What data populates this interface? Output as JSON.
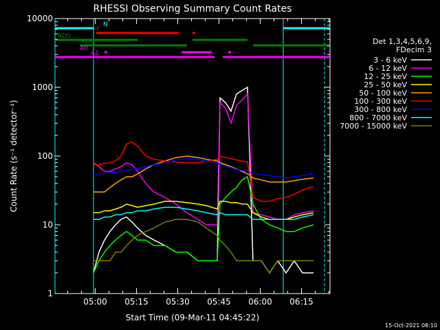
{
  "chart_data": {
    "type": "line",
    "title": "RHESSI Observing Summary Count Rates",
    "xlabel": "Start Time (09-Mar-11 04:45:22)",
    "ylabel": "Count Rate (s⁻¹ detector⁻¹)",
    "yscale": "log",
    "ylim": [
      1,
      10000
    ],
    "xlim_minutes": [
      0,
      100
    ],
    "x_ticks": [
      "05:00",
      "05:15",
      "05:30",
      "05:45",
      "06:00",
      "06:15"
    ],
    "y_ticks": [
      "1",
      "10",
      "100",
      "1000",
      "10000"
    ],
    "legend_header": [
      "Det 1,3,4,5,6,9,",
      "FDecim 3"
    ],
    "legend_placement": "right",
    "footer_stamp": "15-Oct-2021 08:10",
    "flag_labels": [
      "N",
      "F",
      "RD0",
      "RD6",
      "A0",
      "A1"
    ],
    "series": [
      {
        "name": "3 - 6 keV",
        "color": "#ffffff",
        "t": [
          14,
          16,
          18,
          20,
          22,
          24,
          26,
          28,
          30,
          33,
          36,
          40,
          44,
          48,
          52,
          55,
          59,
          60,
          62,
          64,
          66,
          68,
          70,
          72,
          75,
          78,
          81,
          84,
          87,
          90,
          94
        ],
        "v": [
          2,
          4,
          6,
          8,
          10,
          12,
          13,
          11,
          9,
          7,
          6,
          5,
          4,
          4,
          3,
          3,
          3,
          700,
          600,
          450,
          800,
          900,
          1000,
          3,
          3,
          2,
          3,
          2,
          3,
          2,
          2
        ]
      },
      {
        "name": "6 - 12 keV",
        "color": "#ff00ff",
        "t": [
          14,
          16,
          18,
          20,
          22,
          24,
          26,
          28,
          30,
          33,
          36,
          40,
          44,
          48,
          52,
          55,
          59,
          60,
          62,
          64,
          66,
          68,
          70,
          72,
          75,
          78,
          81,
          84,
          87,
          90,
          94
        ],
        "v": [
          80,
          70,
          60,
          60,
          65,
          70,
          80,
          75,
          60,
          40,
          30,
          25,
          20,
          15,
          12,
          10,
          10,
          600,
          500,
          300,
          550,
          650,
          800,
          15,
          14,
          13,
          12,
          12,
          14,
          15,
          16
        ]
      },
      {
        "name": "12 - 25 keV",
        "color": "#00ff00",
        "t": [
          14,
          16,
          18,
          20,
          22,
          24,
          26,
          28,
          30,
          33,
          36,
          40,
          44,
          48,
          52,
          55,
          59,
          60,
          62,
          64,
          66,
          68,
          70,
          72,
          75,
          78,
          81,
          84,
          87,
          90,
          94
        ],
        "v": [
          2,
          3,
          4,
          5,
          6,
          7,
          8,
          7,
          6,
          6,
          5,
          5,
          4,
          4,
          3,
          3,
          3,
          20,
          25,
          30,
          35,
          45,
          50,
          20,
          12,
          10,
          9,
          8,
          8,
          9,
          10
        ]
      },
      {
        "name": "25 - 50 keV",
        "color": "#ffff00",
        "t": [
          14,
          16,
          18,
          20,
          22,
          24,
          26,
          28,
          30,
          33,
          36,
          40,
          44,
          48,
          52,
          55,
          59,
          60,
          62,
          64,
          66,
          68,
          70,
          72,
          75,
          78,
          81,
          84,
          87,
          90,
          94
        ],
        "v": [
          15,
          15,
          16,
          16,
          17,
          18,
          20,
          19,
          18,
          19,
          20,
          22,
          22,
          21,
          20,
          19,
          17,
          22,
          22,
          21,
          21,
          20,
          20,
          15,
          13,
          12,
          12,
          12,
          13,
          14,
          15
        ]
      },
      {
        "name": "50 - 100 keV",
        "color": "#ffa500",
        "t": [
          14,
          16,
          18,
          20,
          22,
          24,
          26,
          28,
          30,
          33,
          36,
          40,
          44,
          48,
          52,
          55,
          59,
          60,
          62,
          64,
          66,
          68,
          70,
          72,
          75,
          78,
          81,
          84,
          87,
          90,
          94
        ],
        "v": [
          30,
          30,
          30,
          35,
          40,
          45,
          50,
          50,
          55,
          65,
          75,
          85,
          95,
          100,
          95,
          90,
          85,
          80,
          75,
          70,
          65,
          60,
          55,
          48,
          45,
          42,
          42,
          42,
          44,
          46,
          48
        ]
      },
      {
        "name": "100 - 300 keV",
        "color": "#ff0000",
        "t": [
          14,
          16,
          18,
          20,
          22,
          24,
          26,
          28,
          30,
          33,
          36,
          40,
          44,
          48,
          52,
          55,
          59,
          60,
          62,
          64,
          66,
          68,
          70,
          72,
          75,
          78,
          81,
          84,
          87,
          90,
          94
        ],
        "v": [
          75,
          75,
          78,
          80,
          85,
          100,
          150,
          160,
          140,
          100,
          90,
          85,
          82,
          80,
          80,
          85,
          90,
          100,
          95,
          92,
          88,
          85,
          82,
          25,
          22,
          22,
          24,
          25,
          28,
          32,
          36
        ]
      },
      {
        "name": "300 - 800 keV",
        "color": "#0000ff",
        "t": [
          14,
          16,
          18,
          20,
          22,
          24,
          26,
          28,
          30,
          33,
          36,
          40,
          44,
          48,
          52,
          55,
          59,
          60,
          62,
          64,
          66,
          68,
          70,
          72,
          75,
          78,
          81,
          84,
          87,
          90,
          94
        ],
        "v": [
          55,
          55,
          56,
          57,
          58,
          60,
          62,
          64,
          66,
          70,
          75,
          80,
          88,
          92,
          90,
          85,
          80,
          75,
          72,
          68,
          64,
          62,
          60,
          56,
          54,
          52,
          50,
          48,
          50,
          52,
          55
        ]
      },
      {
        "name": "800 - 7000 keV",
        "color": "#00ffff",
        "t": [
          14,
          16,
          18,
          20,
          22,
          24,
          26,
          28,
          30,
          33,
          36,
          40,
          44,
          48,
          52,
          55,
          59,
          60,
          62,
          64,
          66,
          68,
          70,
          72,
          75,
          78,
          81,
          84,
          87,
          90,
          94
        ],
        "v": [
          12,
          12,
          13,
          13,
          14,
          14,
          15,
          15,
          16,
          16,
          17,
          18,
          18,
          17,
          16,
          15,
          14,
          15,
          14,
          14,
          14,
          14,
          14,
          12,
          12,
          12,
          12,
          12,
          12,
          13,
          14
        ]
      },
      {
        "name": "7000 - 15000 keV",
        "color": "#808000",
        "t": [
          14,
          16,
          18,
          20,
          22,
          24,
          26,
          28,
          30,
          33,
          36,
          40,
          44,
          48,
          52,
          55,
          59,
          60,
          62,
          64,
          66,
          68,
          70,
          72,
          75,
          78,
          81,
          84,
          87,
          90,
          94
        ],
        "v": [
          3,
          3,
          3,
          3,
          4,
          4,
          5,
          6,
          7,
          8,
          9,
          11,
          12,
          12,
          11,
          9,
          7,
          6,
          5,
          4,
          3,
          3,
          3,
          3,
          3,
          2,
          3,
          3,
          3,
          3,
          3
        ]
      }
    ],
    "flags": [
      {
        "label": "N",
        "color": "#00ffff",
        "segments": [
          [
            0,
            14
          ],
          [
            83,
            100
          ]
        ]
      },
      {
        "label": "F",
        "color": "#ff0000",
        "segments": [
          [
            15,
            45
          ],
          [
            50,
            51
          ]
        ]
      },
      {
        "label": "RD0",
        "color": "#008000",
        "segments": [
          [
            0,
            30
          ],
          [
            50,
            70
          ]
        ]
      },
      {
        "label": "RD6",
        "color": "#008000",
        "segments": [
          [
            9,
            48
          ],
          [
            72,
            100
          ]
        ]
      },
      {
        "label": "A0",
        "color": "#ff00ff",
        "segments": [
          [
            18,
            19
          ],
          [
            46,
            57
          ],
          [
            63,
            64
          ]
        ]
      },
      {
        "label": "A1",
        "color": "#ff00ff",
        "segments": [
          [
            0,
            58
          ],
          [
            61,
            100
          ]
        ]
      }
    ],
    "vertical_markers": [
      {
        "t": 0,
        "color": "#00ffff",
        "style": "solid"
      },
      {
        "t": 14,
        "color": "#00ffff",
        "style": "solid"
      },
      {
        "t": 83,
        "color": "#00ffff",
        "style": "solid"
      },
      {
        "t": 98,
        "color": "#00ffff",
        "style": "dashed"
      }
    ]
  }
}
